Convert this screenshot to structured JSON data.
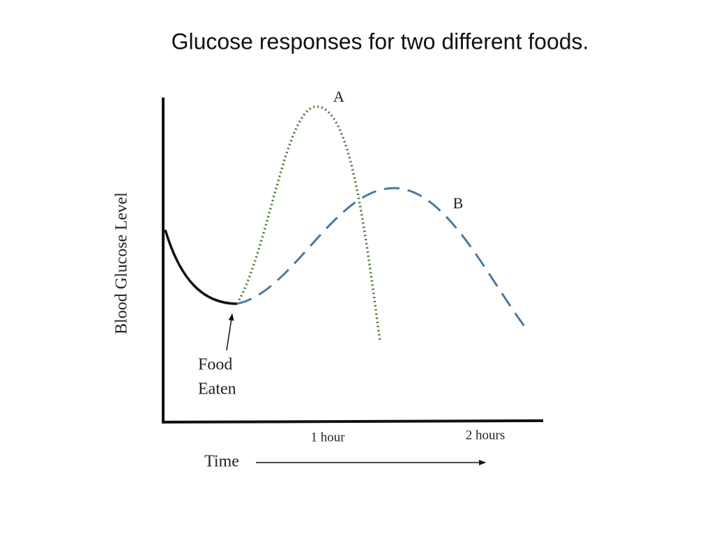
{
  "title": "Glucose responses for two different foods.",
  "axes": {
    "y_label": "Blood Glucose Level",
    "x_label": "Time",
    "x_marks": [
      "1 hour",
      "2 hours"
    ]
  },
  "curves": [
    {
      "label": "A"
    },
    {
      "label": "B"
    }
  ],
  "annotation": {
    "lines": [
      "Food",
      "Eaten"
    ]
  }
}
